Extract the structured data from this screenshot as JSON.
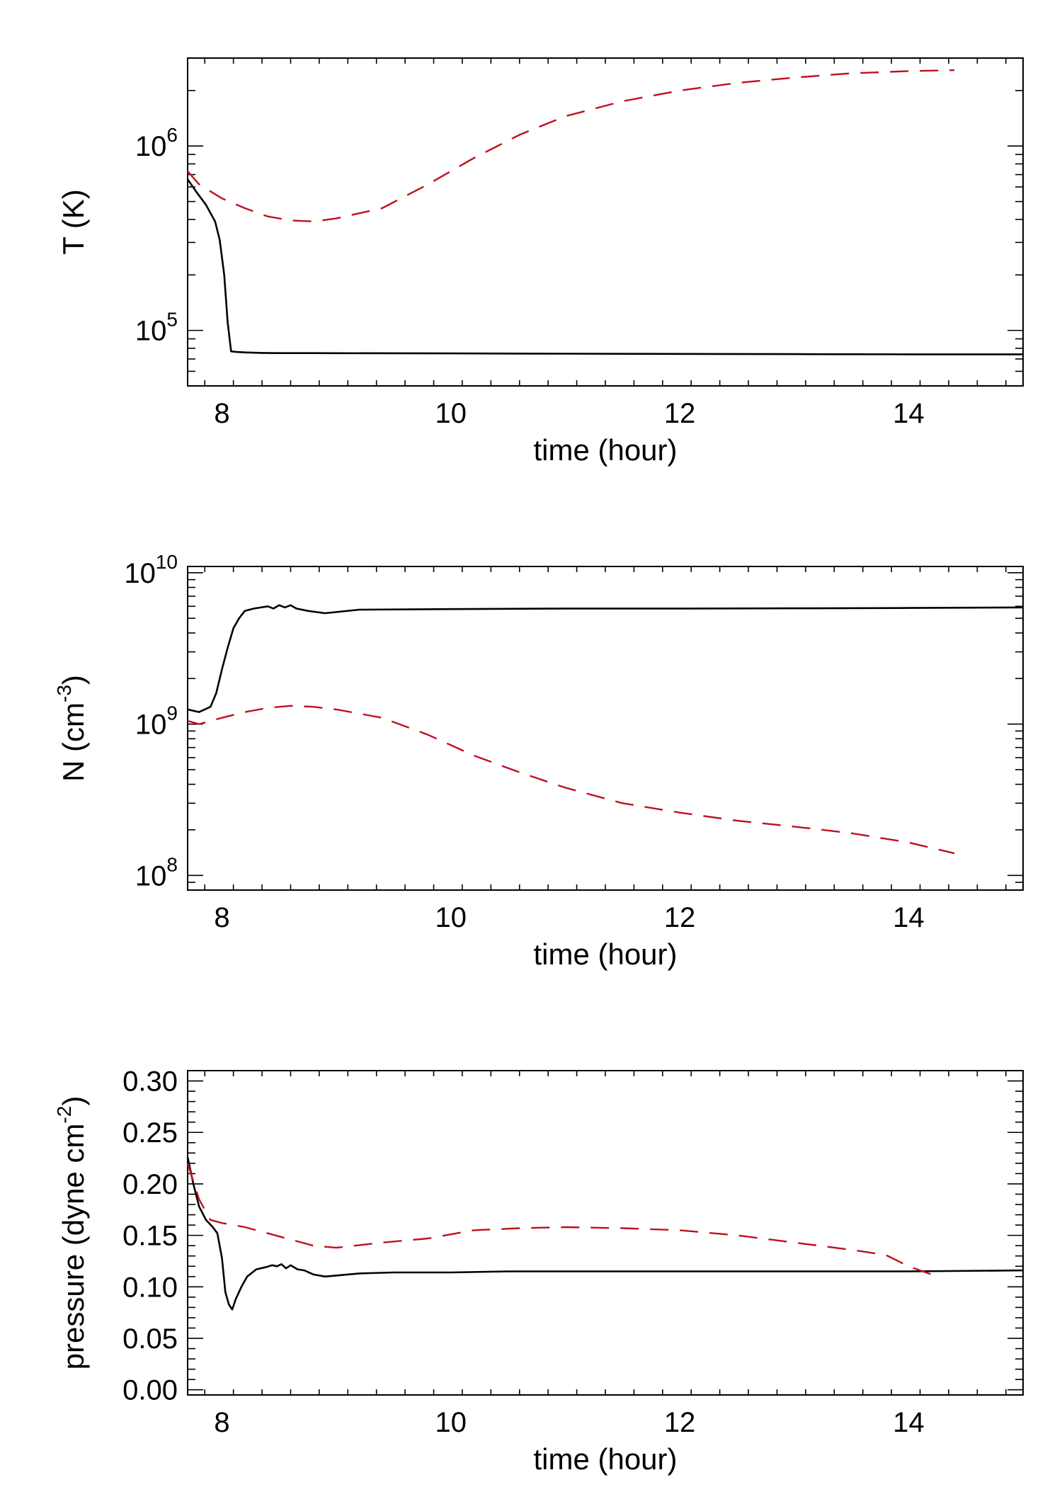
{
  "chart_data": [
    {
      "type": "line",
      "yscale": "log",
      "title": "",
      "xlabel": "time (hour)",
      "ylabel": "T (K)",
      "xlim": [
        7.7,
        15.0
      ],
      "ylim": [
        50000,
        3000000
      ],
      "xticks": [
        8,
        10,
        12,
        14
      ],
      "xtick_labels": [
        "8",
        "10",
        "12",
        "14"
      ],
      "yticks": [
        100000,
        1000000
      ],
      "ytick_labels": [
        {
          "base": "10",
          "exp": "5"
        },
        {
          "base": "10",
          "exp": "6"
        }
      ],
      "series": [
        {
          "name": "solid",
          "color": "#000000",
          "dashed": false,
          "x": [
            7.7,
            7.78,
            7.86,
            7.94,
            7.98,
            8.02,
            8.05,
            8.08,
            8.12,
            8.2,
            8.35,
            8.5,
            8.8,
            9.0,
            10.0,
            11.0,
            12.0,
            13.0,
            14.0,
            15.0
          ],
          "y": [
            660000,
            560000,
            480000,
            390000,
            310000,
            200000,
            110000,
            77000,
            76500,
            76000,
            75500,
            75300,
            75300,
            75200,
            75000,
            74800,
            74600,
            74400,
            74200,
            74200
          ]
        },
        {
          "name": "dashed",
          "color": "#c0101e",
          "dashed": true,
          "x": [
            7.7,
            7.8,
            8.0,
            8.2,
            8.4,
            8.6,
            8.8,
            9.0,
            9.4,
            9.8,
            10.2,
            10.6,
            11.0,
            11.5,
            12.0,
            12.5,
            13.0,
            13.5,
            14.0,
            14.4
          ],
          "y": [
            730000,
            620000,
            520000,
            460000,
            415000,
            395000,
            390000,
            405000,
            460000,
            620000,
            860000,
            1150000,
            1450000,
            1750000,
            2000000,
            2200000,
            2350000,
            2480000,
            2550000,
            2580000
          ]
        }
      ]
    },
    {
      "type": "line",
      "yscale": "log",
      "title": "",
      "xlabel": "time (hour)",
      "ylabel": "N (cm-3)",
      "ylabel_parts": {
        "base": "N (cm",
        "exp": "-3",
        "end": ")"
      },
      "xlim": [
        7.7,
        15.0
      ],
      "ylim": [
        80000000,
        11000000000
      ],
      "xticks": [
        8,
        10,
        12,
        14
      ],
      "xtick_labels": [
        "8",
        "10",
        "12",
        "14"
      ],
      "yticks": [
        100000000,
        1000000000,
        10000000000
      ],
      "ytick_labels": [
        {
          "base": "10",
          "exp": "8"
        },
        {
          "base": "10",
          "exp": "9"
        },
        {
          "base": "10",
          "exp": "10"
        }
      ],
      "series": [
        {
          "name": "solid",
          "color": "#000000",
          "dashed": false,
          "x": [
            7.7,
            7.8,
            7.9,
            7.95,
            8.0,
            8.05,
            8.1,
            8.15,
            8.2,
            8.28,
            8.4,
            8.45,
            8.5,
            8.55,
            8.6,
            8.65,
            8.75,
            8.9,
            9.2,
            10.0,
            11.0,
            12.0,
            13.0,
            14.0,
            15.0
          ],
          "y": [
            1250000000,
            1200000000,
            1300000000,
            1600000000,
            2300000000,
            3200000000,
            4300000000,
            5000000000,
            5600000000,
            5800000000,
            6000000000,
            5800000000,
            6100000000,
            5900000000,
            6100000000,
            5800000000,
            5600000000,
            5400000000,
            5700000000,
            5750000000,
            5800000000,
            5800000000,
            5820000000,
            5850000000,
            5900000000
          ]
        },
        {
          "name": "dashed",
          "color": "#c0101e",
          "dashed": true,
          "x": [
            7.7,
            7.8,
            8.0,
            8.2,
            8.4,
            8.6,
            8.8,
            9.0,
            9.4,
            9.8,
            10.2,
            10.6,
            11.0,
            11.5,
            12.0,
            12.5,
            13.0,
            13.5,
            14.0,
            14.4
          ],
          "y": [
            1050000000,
            1000000000,
            1100000000,
            1200000000,
            1280000000,
            1320000000,
            1300000000,
            1250000000,
            1100000000,
            850000000,
            620000000,
            480000000,
            380000000,
            300000000,
            260000000,
            230000000,
            210000000,
            190000000,
            165000000,
            140000000
          ]
        }
      ]
    },
    {
      "type": "line",
      "yscale": "linear",
      "title": "",
      "xlabel": "time (hour)",
      "ylabel": "pressure (dyne cm-2)",
      "ylabel_parts": {
        "base": "pressure (dyne cm",
        "exp": "-2",
        "end": ")"
      },
      "xlim": [
        7.7,
        15.0
      ],
      "ylim": [
        -0.005,
        0.31
      ],
      "xticks": [
        8,
        10,
        12,
        14
      ],
      "xtick_labels": [
        "8",
        "10",
        "12",
        "14"
      ],
      "yticks": [
        0.0,
        0.05,
        0.1,
        0.15,
        0.2,
        0.25,
        0.3
      ],
      "ytick_labels": [
        "0.00",
        "0.05",
        "0.10",
        "0.15",
        "0.20",
        "0.25",
        "0.30"
      ],
      "series": [
        {
          "name": "solid",
          "color": "#000000",
          "dashed": false,
          "x": [
            7.7,
            7.75,
            7.8,
            7.86,
            7.92,
            7.96,
            8.0,
            8.03,
            8.06,
            8.09,
            8.12,
            8.17,
            8.22,
            8.3,
            8.38,
            8.44,
            8.48,
            8.52,
            8.56,
            8.6,
            8.66,
            8.72,
            8.8,
            8.9,
            9.2,
            9.5,
            10.0,
            10.5,
            11.0,
            12.0,
            13.0,
            14.0,
            15.0
          ],
          "y": [
            0.226,
            0.2,
            0.178,
            0.165,
            0.158,
            0.152,
            0.128,
            0.095,
            0.083,
            0.078,
            0.088,
            0.1,
            0.11,
            0.117,
            0.119,
            0.121,
            0.12,
            0.122,
            0.118,
            0.121,
            0.117,
            0.116,
            0.112,
            0.11,
            0.113,
            0.114,
            0.114,
            0.115,
            0.115,
            0.115,
            0.115,
            0.115,
            0.116
          ]
        },
        {
          "name": "dashed",
          "color": "#c0101e",
          "dashed": true,
          "x": [
            7.7,
            7.8,
            7.9,
            8.0,
            8.2,
            8.4,
            8.6,
            8.8,
            9.0,
            9.4,
            9.8,
            10.2,
            10.6,
            11.0,
            11.5,
            12.0,
            12.5,
            13.0,
            13.5,
            13.8,
            14.0,
            14.2
          ],
          "y": [
            0.22,
            0.185,
            0.165,
            0.162,
            0.158,
            0.152,
            0.146,
            0.14,
            0.138,
            0.143,
            0.147,
            0.155,
            0.157,
            0.158,
            0.157,
            0.155,
            0.15,
            0.143,
            0.136,
            0.131,
            0.12,
            0.112
          ]
        }
      ]
    }
  ]
}
